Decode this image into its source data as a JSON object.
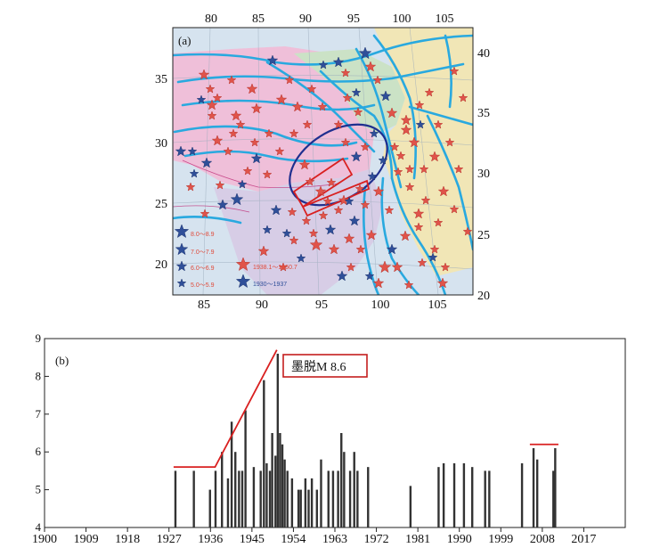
{
  "map_panel": {
    "label": "(a)",
    "top_lon_ticks": [
      "80",
      "85",
      "90",
      "95",
      "100",
      "105"
    ],
    "bottom_lon_ticks": [
      "85",
      "90",
      "95",
      "100",
      "105"
    ],
    "left_lat_ticks": [
      "35",
      "30",
      "25",
      "20"
    ],
    "right_lat_ticks": [
      "40",
      "35",
      "30",
      "25",
      "20"
    ],
    "legend": {
      "mag_8": "8.0～8.9",
      "mag_7": "7.0～7.9",
      "mag_6": "6.0～6.9",
      "mag_5": "5.0～5.9",
      "period_red": "1938.1～1950.7",
      "period_blue": "1930～1937"
    },
    "colors": {
      "red_star": "#e0534a",
      "blue_star": "#2f4f99",
      "ellipse": "#1f2f8f",
      "rupture": "#d92020",
      "fault": "#29a9df"
    }
  },
  "chart_data": {
    "type": "bar",
    "panel_label": "(b)",
    "title": "",
    "xlabel": "",
    "ylabel": "",
    "xlim": [
      1900,
      2026
    ],
    "ylim": [
      4,
      9
    ],
    "xticks": [
      "1900",
      "1909",
      "1918",
      "1927",
      "1936",
      "1945",
      "1954",
      "1963",
      "1972",
      "1981",
      "1990",
      "1999",
      "2008",
      "2017"
    ],
    "yticks": [
      "4",
      "5",
      "6",
      "7",
      "8",
      "9"
    ],
    "annotation": "墨脱M 8.6",
    "events": [
      {
        "year": 1928.4,
        "mag": 5.5
      },
      {
        "year": 1932.4,
        "mag": 5.5
      },
      {
        "year": 1935.9,
        "mag": 5.0
      },
      {
        "year": 1937.1,
        "mag": 5.5
      },
      {
        "year": 1938.5,
        "mag": 6.0
      },
      {
        "year": 1939.8,
        "mag": 5.3
      },
      {
        "year": 1940.6,
        "mag": 6.8
      },
      {
        "year": 1941.4,
        "mag": 6.0
      },
      {
        "year": 1942.2,
        "mag": 5.5
      },
      {
        "year": 1942.9,
        "mag": 5.5
      },
      {
        "year": 1943.6,
        "mag": 7.1
      },
      {
        "year": 1945.4,
        "mag": 5.6
      },
      {
        "year": 1946.9,
        "mag": 5.5
      },
      {
        "year": 1947.6,
        "mag": 7.9
      },
      {
        "year": 1948.2,
        "mag": 5.7
      },
      {
        "year": 1948.9,
        "mag": 5.5
      },
      {
        "year": 1949.4,
        "mag": 6.5
      },
      {
        "year": 1950.1,
        "mag": 5.9
      },
      {
        "year": 1950.6,
        "mag": 8.6
      },
      {
        "year": 1951.1,
        "mag": 6.5
      },
      {
        "year": 1951.6,
        "mag": 6.2
      },
      {
        "year": 1952.1,
        "mag": 5.8
      },
      {
        "year": 1952.7,
        "mag": 5.5
      },
      {
        "year": 1953.7,
        "mag": 5.3
      },
      {
        "year": 1955.1,
        "mag": 5.0
      },
      {
        "year": 1955.6,
        "mag": 5.0
      },
      {
        "year": 1956.6,
        "mag": 5.3
      },
      {
        "year": 1957.3,
        "mag": 5.0
      },
      {
        "year": 1958.0,
        "mag": 5.3
      },
      {
        "year": 1959.1,
        "mag": 5.0
      },
      {
        "year": 1960.0,
        "mag": 5.8
      },
      {
        "year": 1961.6,
        "mag": 5.5
      },
      {
        "year": 1962.6,
        "mag": 5.5
      },
      {
        "year": 1963.7,
        "mag": 5.5
      },
      {
        "year": 1964.4,
        "mag": 6.5
      },
      {
        "year": 1965.0,
        "mag": 6.0
      },
      {
        "year": 1966.3,
        "mag": 5.5
      },
      {
        "year": 1967.2,
        "mag": 6.0
      },
      {
        "year": 1967.9,
        "mag": 5.5
      },
      {
        "year": 1970.2,
        "mag": 5.6
      },
      {
        "year": 1979.4,
        "mag": 5.1
      },
      {
        "year": 1985.5,
        "mag": 5.6
      },
      {
        "year": 1986.6,
        "mag": 5.7
      },
      {
        "year": 1988.9,
        "mag": 5.7
      },
      {
        "year": 1991.0,
        "mag": 5.7
      },
      {
        "year": 1992.8,
        "mag": 5.6
      },
      {
        "year": 1995.6,
        "mag": 5.5
      },
      {
        "year": 1996.5,
        "mag": 5.5
      },
      {
        "year": 2003.6,
        "mag": 5.7
      },
      {
        "year": 2006.1,
        "mag": 6.1
      },
      {
        "year": 2006.9,
        "mag": 5.8
      },
      {
        "year": 2010.4,
        "mag": 5.5
      },
      {
        "year": 2010.8,
        "mag": 6.1
      }
    ],
    "trend_line": [
      [
        1928,
        5.6
      ],
      [
        1937,
        5.6
      ],
      [
        1950.4,
        8.7
      ]
    ],
    "recent_marker": [
      [
        2005.3,
        6.2
      ],
      [
        2011.5,
        6.2
      ]
    ]
  }
}
